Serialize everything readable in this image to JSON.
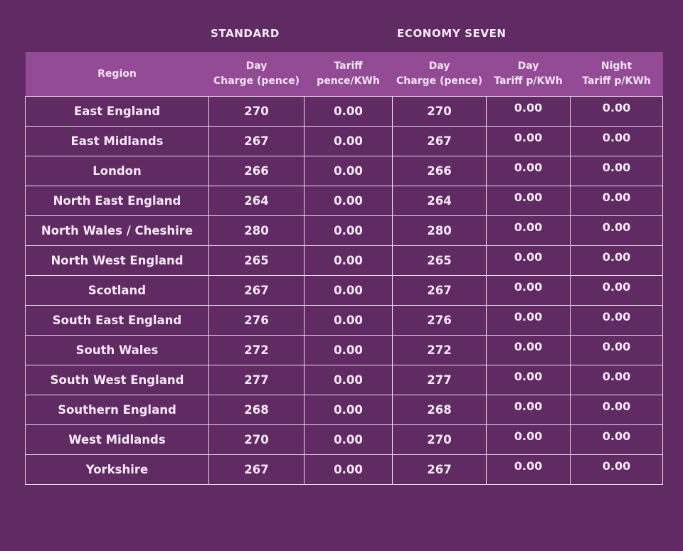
{
  "page": {
    "background_color": "#602a62",
    "header_band_color": "#924b94",
    "border_color": "#eedaee",
    "text_color": "#f7eaf7"
  },
  "group_headers": {
    "standard": "STANDARD",
    "economy_seven": "ECONOMY SEVEN"
  },
  "table": {
    "columns": [
      {
        "line1": "Region",
        "line2": ""
      },
      {
        "line1": "Day",
        "line2": "Charge (pence)"
      },
      {
        "line1": "Tariff",
        "line2": "pence/KWh"
      },
      {
        "line1": "Day",
        "line2": "Charge (pence)"
      },
      {
        "line1": "Day",
        "line2": "Tariff p/KWh"
      },
      {
        "line1": "Night",
        "line2": "Tariff p/KWh"
      }
    ]
  },
  "chart_data": {
    "type": "table",
    "title": "",
    "column_groups": [
      {
        "label": "STANDARD",
        "columns": [
          "Day Charge (pence)",
          "Tariff pence/KWh"
        ]
      },
      {
        "label": "ECONOMY SEVEN",
        "columns": [
          "Day Charge (pence)",
          "Day Tariff p/KWh",
          "Night Tariff p/KWh"
        ]
      }
    ],
    "columns": [
      "Region",
      "Standard Day Charge (pence)",
      "Standard Tariff pence/KWh",
      "Economy Seven Day Charge (pence)",
      "Economy Seven Day Tariff p/KWh",
      "Economy Seven Night Tariff p/KWh"
    ],
    "rows": [
      [
        "East England",
        "270",
        "0.00",
        "270",
        "0.00",
        "0.00"
      ],
      [
        "East Midlands",
        "267",
        "0.00",
        "267",
        "0.00",
        "0.00"
      ],
      [
        "London",
        "266",
        "0.00",
        "266",
        "0.00",
        "0.00"
      ],
      [
        "North East England",
        "264",
        "0.00",
        "264",
        "0.00",
        "0.00"
      ],
      [
        "North Wales / Cheshire",
        "280",
        "0.00",
        "280",
        "0.00",
        "0.00"
      ],
      [
        "North West England",
        "265",
        "0.00",
        "265",
        "0.00",
        "0.00"
      ],
      [
        "Scotland",
        "267",
        "0.00",
        "267",
        "0.00",
        "0.00"
      ],
      [
        "South East England",
        "276",
        "0.00",
        "276",
        "0.00",
        "0.00"
      ],
      [
        "South Wales",
        "272",
        "0.00",
        "272",
        "0.00",
        "0.00"
      ],
      [
        "South West England",
        "277",
        "0.00",
        "277",
        "0.00",
        "0.00"
      ],
      [
        "Southern England",
        "268",
        "0.00",
        "268",
        "0.00",
        "0.00"
      ],
      [
        "West Midlands",
        "270",
        "0.00",
        "270",
        "0.00",
        "0.00"
      ],
      [
        "Yorkshire",
        "267",
        "0.00",
        "267",
        "0.00",
        "0.00"
      ]
    ]
  }
}
